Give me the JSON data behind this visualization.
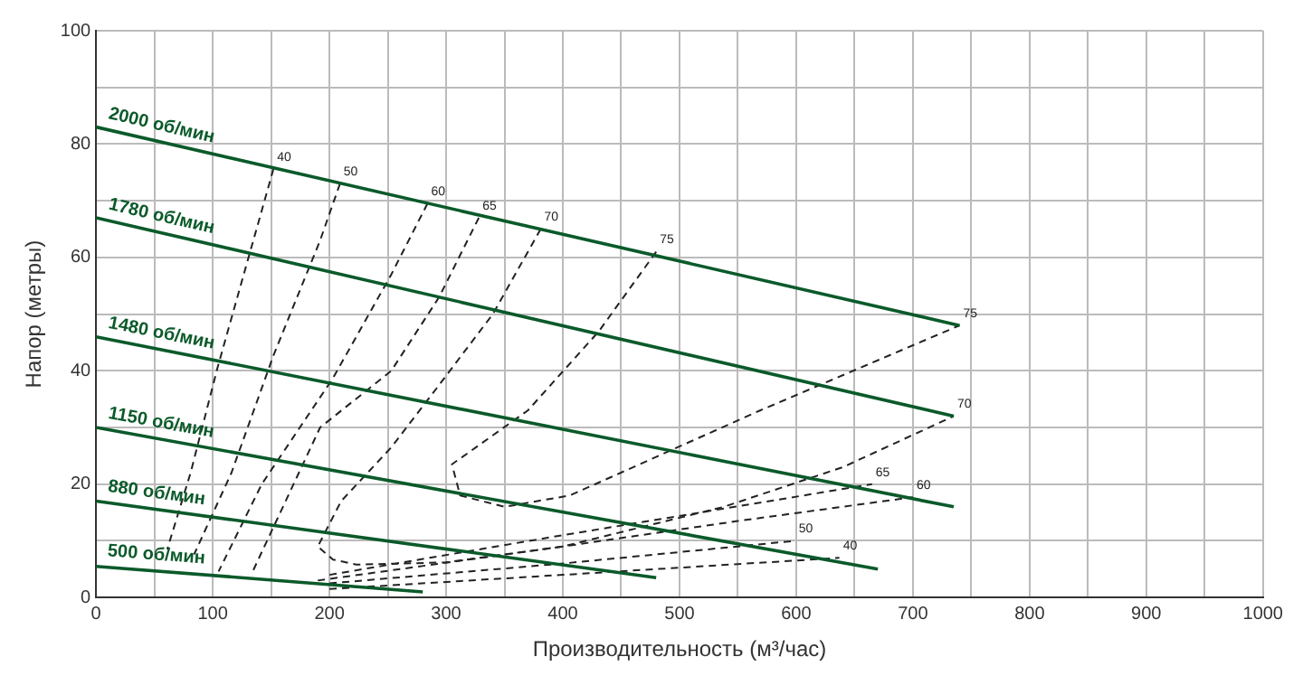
{
  "chart_data": {
    "type": "line",
    "xlabel": "Производительность (м³/час)",
    "ylabel": "Напор (метры)",
    "xlim": [
      0,
      1000
    ],
    "ylim": [
      0,
      100
    ],
    "xticks": [
      0,
      {
        "value": 50,
        "label": null
      },
      100,
      {
        "value": 150,
        "label": null
      },
      200,
      {
        "value": 250,
        "label": null
      },
      300,
      {
        "value": 350,
        "label": null
      },
      400,
      {
        "value": 450,
        "label": null
      },
      500,
      {
        "value": 550,
        "label": null
      },
      600,
      {
        "value": 650,
        "label": null
      },
      700,
      {
        "value": 750,
        "label": null
      },
      800,
      {
        "value": 850,
        "label": null
      },
      900,
      {
        "value": 950,
        "label": null
      },
      1000
    ],
    "yticks": [
      0,
      {
        "value": 10,
        "label": null
      },
      20,
      {
        "value": 30,
        "label": null
      },
      40,
      {
        "value": 50,
        "label": null
      },
      60,
      {
        "value": 70,
        "label": null
      },
      80,
      {
        "value": 90,
        "label": null
      },
      100
    ],
    "grid": true,
    "legend": false,
    "marker": "none",
    "series": [
      {
        "name": "2000 об/мин",
        "color": "#0b5a2a",
        "line_style": "solid",
        "x": [
          0,
          740
        ],
        "values": [
          83,
          48
        ]
      },
      {
        "name": "1780 об/мин",
        "color": "#0b5a2a",
        "line_style": "solid",
        "x": [
          0,
          735
        ],
        "values": [
          67,
          32
        ]
      },
      {
        "name": "1480 об/мин",
        "color": "#0b5a2a",
        "line_style": "solid",
        "x": [
          0,
          735
        ],
        "values": [
          46,
          16
        ]
      },
      {
        "name": "1150 об/мин",
        "color": "#0b5a2a",
        "line_style": "solid",
        "x": [
          0,
          670
        ],
        "values": [
          30,
          5
        ]
      },
      {
        "name": "880 об/мин",
        "color": "#0b5a2a",
        "line_style": "solid",
        "x": [
          0,
          480
        ],
        "values": [
          17,
          3.5
        ]
      },
      {
        "name": "500 об/мин",
        "color": "#0b5a2a",
        "line_style": "solid",
        "x": [
          0,
          280
        ],
        "values": [
          5.5,
          1
        ]
      },
      {
        "color": "#222222",
        "line_style": "dashed",
        "x": [
          152,
          104,
          81,
          61,
          null,
          200,
          400,
          637
        ],
        "values": [
          75.6,
          40.5,
          22,
          8.5,
          null,
          1.5,
          4,
          7
        ]
      },
      {
        "color": "#222222",
        "line_style": "dashed",
        "x": [
          209,
          192,
          152,
          116,
          84,
          null,
          200,
          400,
          599
        ],
        "values": [
          73,
          63,
          42.7,
          22,
          7.6,
          null,
          2.5,
          6,
          10
        ]
      },
      {
        "color": "#222222",
        "line_style": "dashed",
        "x": [
          284,
          253,
          203,
          142,
          105,
          null,
          190,
          400,
          550,
          700
        ],
        "values": [
          69.5,
          57,
          38.7,
          20,
          4.6,
          null,
          3,
          9,
          13.5,
          17.7
        ]
      },
      {
        "color": "#222222",
        "line_style": "dashed",
        "x": [
          328,
          294,
          253,
          192,
          134,
          null,
          200,
          400,
          665
        ],
        "values": [
          67,
          53,
          40,
          30,
          4.5,
          null,
          4,
          11,
          20
        ]
      },
      {
        "color": "#222222",
        "line_style": "dashed",
        "x": [
          381,
          340,
          294,
          253,
          210,
          190,
          203,
          223,
          300,
          400,
          538,
          640,
          735
        ],
        "values": [
          65,
          50,
          37.5,
          26.5,
          17,
          9,
          6.7,
          5.8,
          6.2,
          9,
          16,
          23,
          32
        ]
      },
      {
        "color": "#222222",
        "line_style": "dashed",
        "x": [
          480,
          431,
          370,
          305,
          312,
          350,
          406,
          569,
          740
        ],
        "values": [
          61,
          47,
          33,
          23.5,
          18,
          16,
          18,
          33,
          48
        ]
      }
    ],
    "annotations": [
      {
        "text": "40",
        "x": 152,
        "y": 75.6
      },
      {
        "text": "50",
        "x": 209,
        "y": 73
      },
      {
        "text": "60",
        "x": 284,
        "y": 69.5
      },
      {
        "text": "65",
        "x": 328,
        "y": 67
      },
      {
        "text": "70",
        "x": 381,
        "y": 65
      },
      {
        "text": "75",
        "x": 480,
        "y": 61
      },
      {
        "text": "75",
        "x": 740,
        "y": 48
      },
      {
        "text": "70",
        "x": 735,
        "y": 32
      },
      {
        "text": "65",
        "x": 665,
        "y": 20
      },
      {
        "text": "60",
        "x": 700,
        "y": 17.7
      },
      {
        "text": "50",
        "x": 599,
        "y": 10
      },
      {
        "text": "40",
        "x": 637,
        "y": 7
      }
    ]
  }
}
